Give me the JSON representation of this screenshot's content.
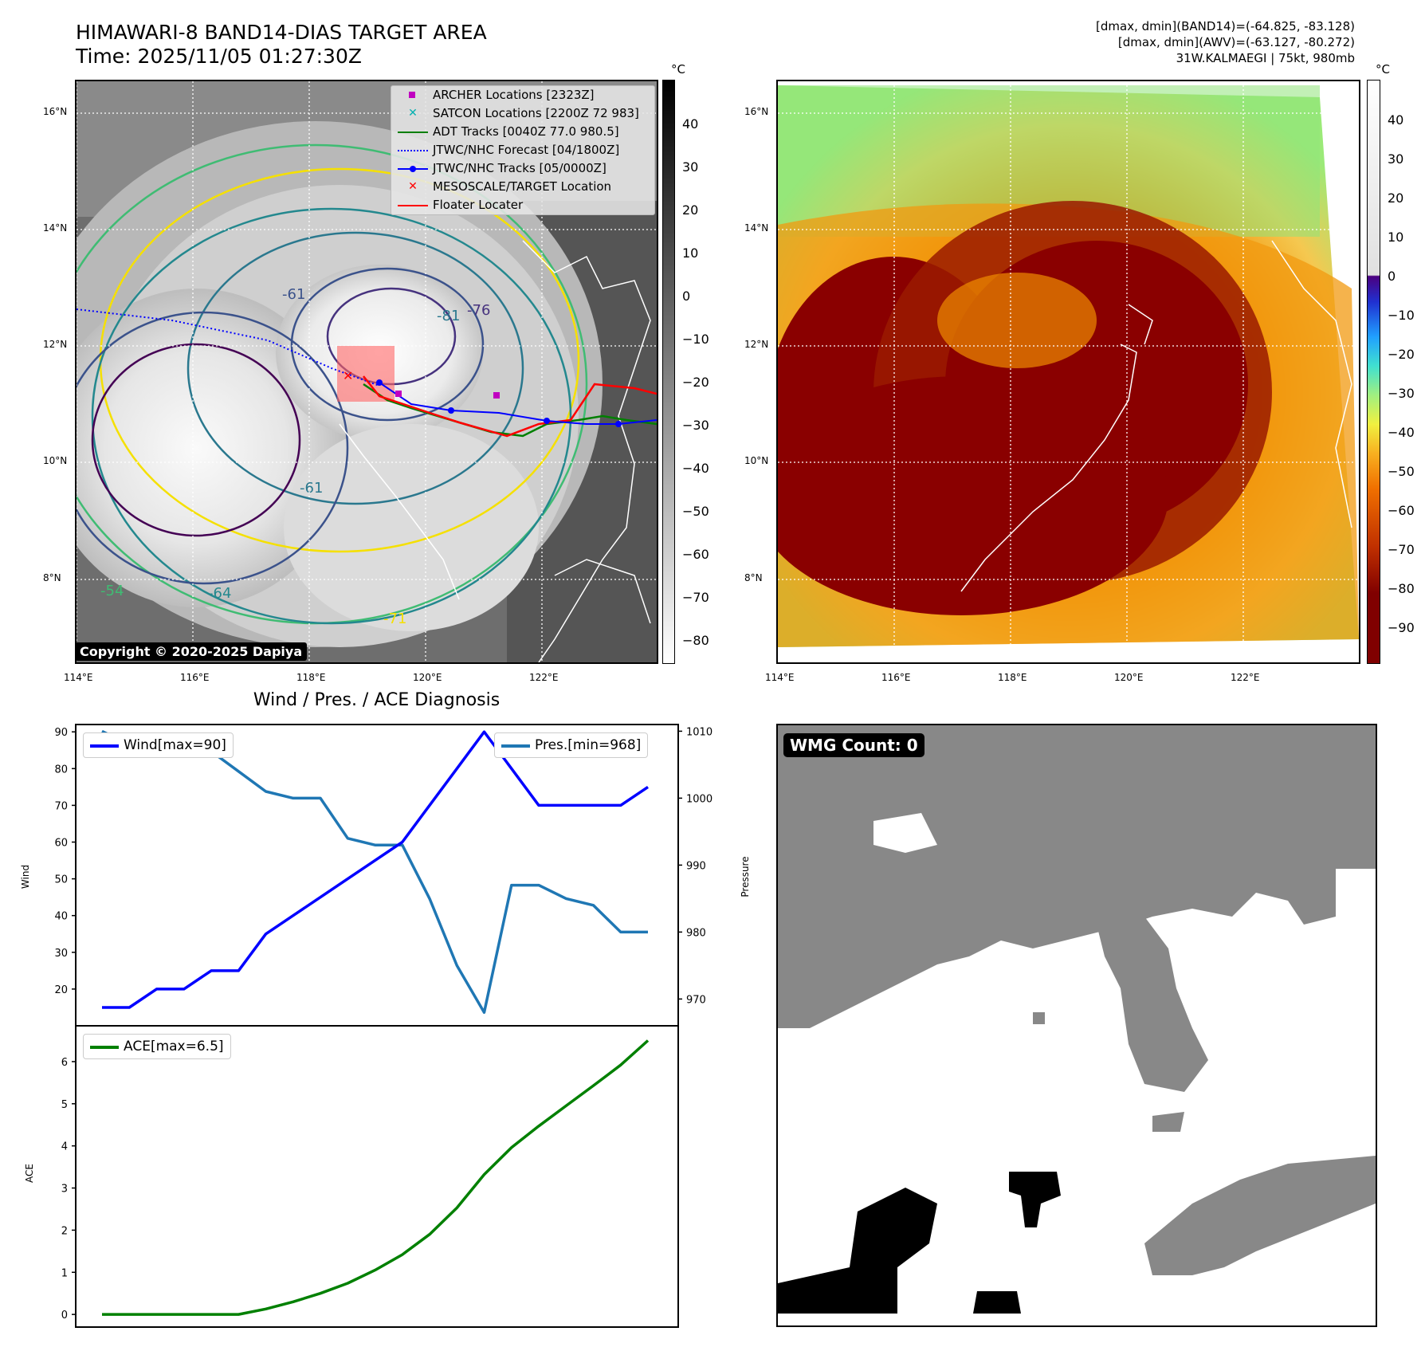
{
  "header": {
    "title_line1": "HIMAWARI-8 BAND14-DIAS TARGET AREA",
    "title_line2": "Time: 2025/11/05 01:27:30Z",
    "stats_line1": "[dmax, dmin](BAND14)=(-64.825, -83.128)",
    "stats_line2": "[dmax, dmin](AWV)=(-63.127, -80.272)",
    "stats_line3": "31W.KALMAEGI | 75kt, 980mb"
  },
  "map": {
    "lat_ticks": [
      "16°N",
      "14°N",
      "12°N",
      "10°N",
      "8°N"
    ],
    "lon_ticks": [
      "114°E",
      "116°E",
      "118°E",
      "120°E",
      "122°E"
    ],
    "copyright": "Copyright © 2020-2025 Dapiya",
    "legend": [
      {
        "label": "ARCHER Locations [2323Z]",
        "color": "#c000c0",
        "marker": "square"
      },
      {
        "label": "SATCON Locations [2200Z 72 983]",
        "color": "#00b0b0",
        "marker": "x"
      },
      {
        "label": "ADT Tracks [0040Z 77.0 980.5]",
        "color": "#007f00",
        "marker": "line"
      },
      {
        "label": "JTWC/NHC Forecast [04/1800Z]",
        "color": "#0000ff",
        "marker": "dotted"
      },
      {
        "label": "JTWC/NHC Tracks [05/0000Z]",
        "color": "#0000ff",
        "marker": "line-dot"
      },
      {
        "label": "MESOSCALE/TARGET Location",
        "color": "#ff0000",
        "marker": "x"
      },
      {
        "label": "Floater Locater",
        "color": "#ff0000",
        "marker": "line"
      }
    ],
    "contour_labels": [
      "-81",
      "-76",
      "-61",
      "-64",
      "-54",
      "-71",
      "-61"
    ],
    "colorbar_left": {
      "unit": "°C",
      "ticks": [
        "40",
        "30",
        "20",
        "10",
        "0",
        "−10",
        "−20",
        "−30",
        "−40",
        "−50",
        "−60",
        "−70",
        "−80"
      ]
    },
    "colorbar_right": {
      "unit": "°C",
      "ticks": [
        "40",
        "30",
        "20",
        "10",
        "0",
        "−10",
        "−20",
        "−30",
        "−40",
        "−50",
        "−60",
        "−70",
        "−80",
        "−90"
      ]
    }
  },
  "diag_title": "Wind / Pres. / ACE Diagnosis",
  "wmg": {
    "label": "WMG Count: 0"
  },
  "chart_data": [
    {
      "type": "line",
      "title": "Wind / Pres. / ACE Diagnosis",
      "ylabel": "Wind",
      "ylabel_right": "Pressure",
      "ylim": [
        10,
        92
      ],
      "ylim_right": [
        966,
        1011
      ],
      "yticks": [
        20,
        30,
        40,
        50,
        60,
        70,
        80,
        90
      ],
      "yticks_right": [
        970,
        980,
        990,
        1000,
        1010
      ],
      "series": [
        {
          "name": "Wind[max=90]",
          "color": "#0000ff",
          "axis": "left",
          "values": [
            15,
            15,
            20,
            20,
            25,
            25,
            35,
            40,
            45,
            50,
            55,
            60,
            70,
            80,
            90,
            80,
            70,
            70,
            70,
            70,
            75
          ]
        },
        {
          "name": "Pres.[min=968]",
          "color": "#1f77b4",
          "axis": "right",
          "values": [
            1010,
            1008,
            1008,
            1008,
            1007,
            1004,
            1001,
            1000,
            1000,
            994,
            993,
            993,
            985,
            975,
            968,
            987,
            987,
            985,
            984,
            980,
            980
          ]
        }
      ]
    },
    {
      "type": "line",
      "ylabel": "ACE",
      "ylim": [
        -0.3,
        6.85
      ],
      "yticks": [
        0,
        1,
        2,
        3,
        4,
        5,
        6
      ],
      "series": [
        {
          "name": "ACE[max=6.5]",
          "color": "#008000",
          "values": [
            0,
            0,
            0,
            0,
            0,
            0,
            0.13,
            0.3,
            0.5,
            0.74,
            1.05,
            1.42,
            1.9,
            2.53,
            3.32,
            3.96,
            4.47,
            4.95,
            5.43,
            5.92,
            6.5
          ]
        }
      ]
    }
  ]
}
